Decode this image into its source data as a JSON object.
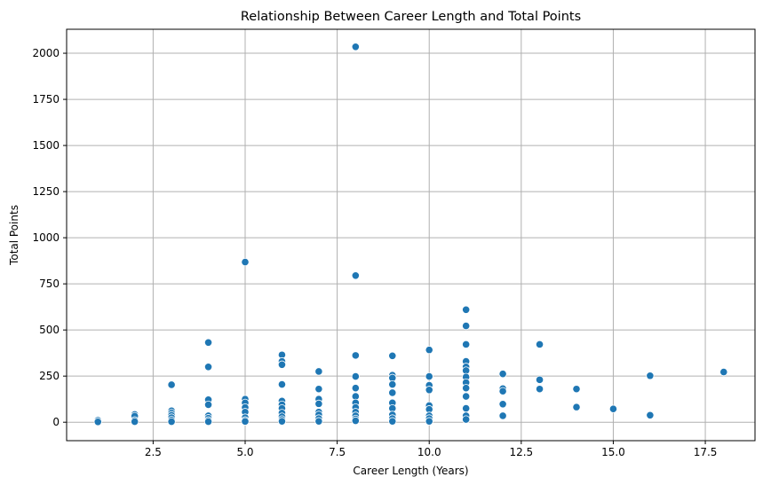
{
  "chart_data": {
    "type": "scatter",
    "title": "Relationship Between Career Length and Total Points",
    "xlabel": "Career Length (Years)",
    "ylabel": "Total Points",
    "xlim": [
      0.15,
      18.85
    ],
    "ylim": [
      -100,
      2130
    ],
    "xticks": [
      2.5,
      5.0,
      7.5,
      10.0,
      12.5,
      15.0,
      17.5
    ],
    "xtick_labels": [
      "2.5",
      "5.0",
      "7.5",
      "10.0",
      "12.5",
      "15.0",
      "17.5"
    ],
    "yticks": [
      0,
      250,
      500,
      750,
      1000,
      1250,
      1500,
      1750,
      2000
    ],
    "ytick_labels": [
      "0",
      "250",
      "500",
      "750",
      "1000",
      "1250",
      "1500",
      "1750",
      "2000"
    ],
    "grid": true,
    "color": "#1f77b4",
    "points": [
      {
        "x": 1,
        "y": 10
      },
      {
        "x": 1,
        "y": 2
      },
      {
        "x": 2,
        "y": 42
      },
      {
        "x": 2,
        "y": 33
      },
      {
        "x": 2,
        "y": 10
      },
      {
        "x": 2,
        "y": 3
      },
      {
        "x": 3,
        "y": 203
      },
      {
        "x": 3,
        "y": 62
      },
      {
        "x": 3,
        "y": 50
      },
      {
        "x": 3,
        "y": 38
      },
      {
        "x": 3,
        "y": 25
      },
      {
        "x": 3,
        "y": 12
      },
      {
        "x": 3,
        "y": 3
      },
      {
        "x": 4,
        "y": 432
      },
      {
        "x": 4,
        "y": 300
      },
      {
        "x": 4,
        "y": 122
      },
      {
        "x": 4,
        "y": 95
      },
      {
        "x": 4,
        "y": 35
      },
      {
        "x": 4,
        "y": 22
      },
      {
        "x": 4,
        "y": 10
      },
      {
        "x": 4,
        "y": 3
      },
      {
        "x": 5,
        "y": 868
      },
      {
        "x": 5,
        "y": 125
      },
      {
        "x": 5,
        "y": 105
      },
      {
        "x": 5,
        "y": 80
      },
      {
        "x": 5,
        "y": 55
      },
      {
        "x": 5,
        "y": 25
      },
      {
        "x": 5,
        "y": 10
      },
      {
        "x": 5,
        "y": 4
      },
      {
        "x": 6,
        "y": 365
      },
      {
        "x": 6,
        "y": 330
      },
      {
        "x": 6,
        "y": 312
      },
      {
        "x": 6,
        "y": 205
      },
      {
        "x": 6,
        "y": 115
      },
      {
        "x": 6,
        "y": 95
      },
      {
        "x": 6,
        "y": 75
      },
      {
        "x": 6,
        "y": 50
      },
      {
        "x": 6,
        "y": 30
      },
      {
        "x": 6,
        "y": 15
      },
      {
        "x": 6,
        "y": 5
      },
      {
        "x": 7,
        "y": 275
      },
      {
        "x": 7,
        "y": 180
      },
      {
        "x": 7,
        "y": 125
      },
      {
        "x": 7,
        "y": 100
      },
      {
        "x": 7,
        "y": 55
      },
      {
        "x": 7,
        "y": 40
      },
      {
        "x": 7,
        "y": 20
      },
      {
        "x": 7,
        "y": 5
      },
      {
        "x": 8,
        "y": 2035
      },
      {
        "x": 8,
        "y": 795
      },
      {
        "x": 8,
        "y": 362
      },
      {
        "x": 8,
        "y": 248
      },
      {
        "x": 8,
        "y": 185
      },
      {
        "x": 8,
        "y": 140
      },
      {
        "x": 8,
        "y": 105
      },
      {
        "x": 8,
        "y": 80
      },
      {
        "x": 8,
        "y": 55
      },
      {
        "x": 8,
        "y": 35
      },
      {
        "x": 8,
        "y": 18
      },
      {
        "x": 8,
        "y": 8
      },
      {
        "x": 9,
        "y": 360
      },
      {
        "x": 9,
        "y": 255
      },
      {
        "x": 9,
        "y": 240
      },
      {
        "x": 9,
        "y": 205
      },
      {
        "x": 9,
        "y": 160
      },
      {
        "x": 9,
        "y": 105
      },
      {
        "x": 9,
        "y": 75
      },
      {
        "x": 9,
        "y": 40
      },
      {
        "x": 9,
        "y": 20
      },
      {
        "x": 9,
        "y": 5
      },
      {
        "x": 10,
        "y": 392
      },
      {
        "x": 10,
        "y": 248
      },
      {
        "x": 10,
        "y": 200
      },
      {
        "x": 10,
        "y": 175
      },
      {
        "x": 10,
        "y": 90
      },
      {
        "x": 10,
        "y": 70
      },
      {
        "x": 10,
        "y": 35
      },
      {
        "x": 10,
        "y": 20
      },
      {
        "x": 10,
        "y": 5
      },
      {
        "x": 11,
        "y": 610
      },
      {
        "x": 11,
        "y": 522
      },
      {
        "x": 11,
        "y": 422
      },
      {
        "x": 11,
        "y": 330
      },
      {
        "x": 11,
        "y": 300
      },
      {
        "x": 11,
        "y": 280
      },
      {
        "x": 11,
        "y": 245
      },
      {
        "x": 11,
        "y": 215
      },
      {
        "x": 11,
        "y": 185
      },
      {
        "x": 11,
        "y": 140
      },
      {
        "x": 11,
        "y": 75
      },
      {
        "x": 11,
        "y": 35
      },
      {
        "x": 11,
        "y": 15
      },
      {
        "x": 12,
        "y": 262
      },
      {
        "x": 12,
        "y": 182
      },
      {
        "x": 12,
        "y": 168
      },
      {
        "x": 12,
        "y": 98
      },
      {
        "x": 12,
        "y": 35
      },
      {
        "x": 13,
        "y": 422
      },
      {
        "x": 13,
        "y": 230
      },
      {
        "x": 13,
        "y": 180
      },
      {
        "x": 14,
        "y": 180
      },
      {
        "x": 14,
        "y": 82
      },
      {
        "x": 15,
        "y": 72
      },
      {
        "x": 16,
        "y": 252
      },
      {
        "x": 16,
        "y": 38
      },
      {
        "x": 18,
        "y": 272
      }
    ]
  }
}
